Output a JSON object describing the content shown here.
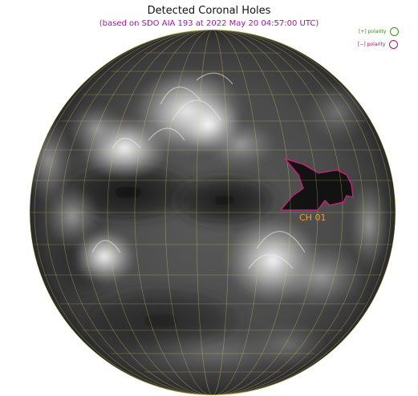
{
  "header": {
    "title": "Detected Coronal Holes",
    "subtitle": "(based on SDO AIA 193 at 2022 May 20 04:57:00 UTC)"
  },
  "legend": [
    {
      "label": "[+] polarity",
      "color": "#3c8f1a"
    },
    {
      "label": "[−] polarity",
      "color": "#a8166e"
    }
  ],
  "annotations": {
    "coronal_hole_label": "CH 01",
    "coronal_hole_color": "#ff9a1c",
    "coronal_hole_outline_color": "#d0207a",
    "grid_color": "#d9d76a"
  }
}
